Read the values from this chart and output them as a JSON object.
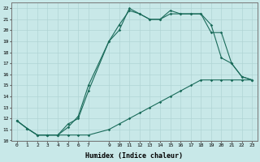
{
  "xlabel": "Humidex (Indice chaleur)",
  "background_color": "#c8e8e8",
  "grid_color": "#b0d4d4",
  "line_color": "#1a6b5a",
  "xlim": [
    -0.5,
    23.5
  ],
  "ylim": [
    10,
    22.5
  ],
  "xticks": [
    0,
    1,
    2,
    3,
    4,
    5,
    6,
    7,
    9,
    10,
    11,
    12,
    13,
    14,
    15,
    16,
    17,
    18,
    19,
    20,
    21,
    22,
    23
  ],
  "yticks": [
    10,
    11,
    12,
    13,
    14,
    15,
    16,
    17,
    18,
    19,
    20,
    21,
    22
  ],
  "line1_x": [
    0,
    1,
    2,
    3,
    4,
    5,
    6,
    7,
    9,
    10,
    11,
    12,
    13,
    14,
    15,
    16,
    17,
    18,
    19,
    20,
    21,
    22,
    23
  ],
  "line1_y": [
    11.8,
    11.1,
    10.5,
    10.5,
    10.5,
    10.5,
    10.5,
    10.5,
    11.0,
    11.5,
    12.0,
    12.5,
    13.0,
    13.5,
    14.0,
    14.5,
    15.0,
    15.5,
    15.5,
    15.5,
    15.5,
    15.5,
    15.5
  ],
  "line2_x": [
    0,
    1,
    2,
    3,
    4,
    5,
    6,
    7,
    9,
    10,
    11,
    12,
    13,
    14,
    15,
    16,
    17,
    18,
    19,
    20,
    21,
    22,
    23
  ],
  "line2_y": [
    11.8,
    11.1,
    10.5,
    10.5,
    10.5,
    11.5,
    12.0,
    14.5,
    19.0,
    20.0,
    22.0,
    21.5,
    21.0,
    21.0,
    21.8,
    21.5,
    21.5,
    21.5,
    19.8,
    19.8,
    17.0,
    15.8,
    15.5
  ],
  "line3_x": [
    0,
    1,
    2,
    3,
    4,
    5,
    6,
    7,
    9,
    10,
    11,
    12,
    13,
    14,
    15,
    16,
    17,
    18,
    19,
    20,
    21,
    22,
    23
  ],
  "line3_y": [
    11.8,
    11.1,
    10.5,
    10.5,
    10.5,
    11.2,
    12.2,
    15.0,
    19.0,
    20.5,
    21.8,
    21.5,
    21.0,
    21.0,
    21.5,
    21.5,
    21.5,
    21.5,
    20.5,
    17.5,
    17.0,
    15.8,
    15.5
  ]
}
